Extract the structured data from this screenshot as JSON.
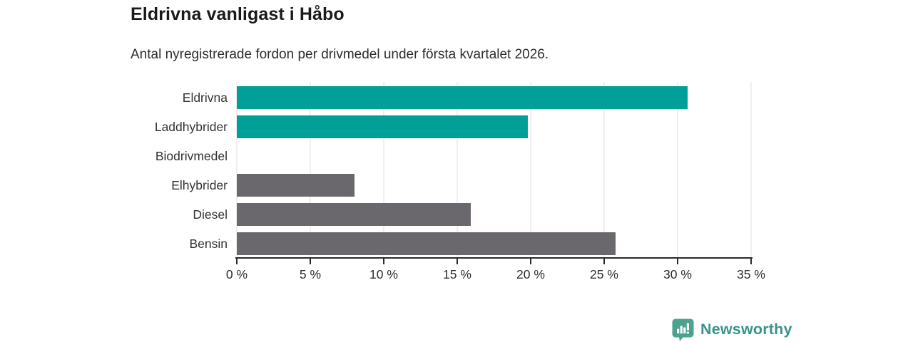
{
  "header": {
    "title": "Eldrivna vanligast i Håbo",
    "subtitle": "Antal nyregistrerade fordon per drivmedel under första kvartalet 2026."
  },
  "chart_data": {
    "type": "bar",
    "orientation": "horizontal",
    "title": "Eldrivna vanligast i Håbo",
    "subtitle": "Antal nyregistrerade fordon per drivmedel under första kvartalet 2026.",
    "categories": [
      "Eldrivna",
      "Laddhybrider",
      "Biodrivmedel",
      "Elhybrider",
      "Diesel",
      "Bensin"
    ],
    "values": [
      30.7,
      19.8,
      0,
      8.0,
      15.9,
      25.8
    ],
    "unit": "%",
    "xlabel": "",
    "ylabel": "",
    "xlim": [
      0,
      35
    ],
    "xticks": [
      0,
      5,
      10,
      15,
      20,
      25,
      30,
      35
    ],
    "xtick_labels": [
      "0 %",
      "5 %",
      "10 %",
      "15 %",
      "20 %",
      "25 %",
      "30 %",
      "35 %"
    ],
    "bar_colors": [
      "#00a099",
      "#00a099",
      "#6b686d",
      "#6b686d",
      "#6b686d",
      "#6b686d"
    ],
    "grid": "vertical-gridlines-on",
    "legend": "none"
  },
  "colors": {
    "teal": "#00a099",
    "gray": "#6b686d",
    "axis": "#2b2b2b",
    "gridline": "#e2e2e2",
    "logo_icon": "#4aa28f",
    "logo_text": "#38948a"
  },
  "footer": {
    "brand": "Newsworthy"
  }
}
